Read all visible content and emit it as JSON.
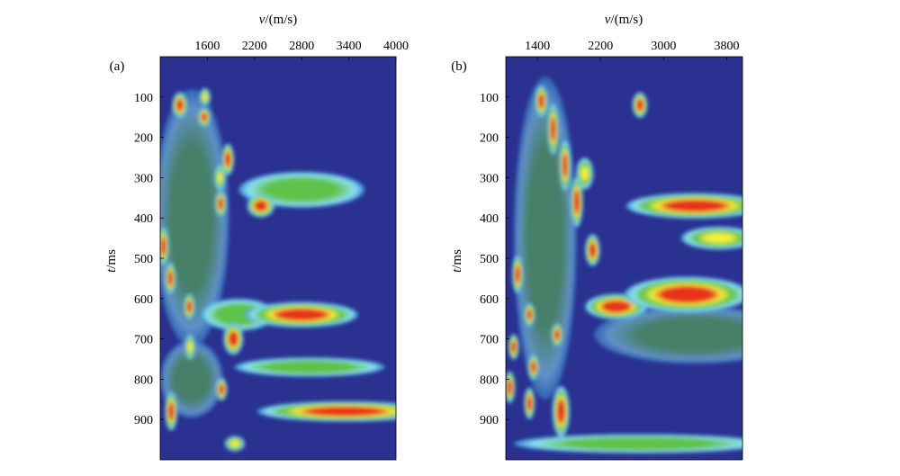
{
  "colors": {
    "low": "#2a3190",
    "mid_low": "#3aa0e0",
    "light": "#8ee0f2",
    "mid": "#5fc24a",
    "high": "#f4ee3a",
    "peak": "#e8321e"
  },
  "chart_data": [
    {
      "type": "heatmap",
      "panel_label": "(a)",
      "xlabel_var": "v",
      "xlabel_unit": "/(m/s)",
      "ylabel_var": "t",
      "ylabel_unit": "/ms",
      "xlim": [
        1000,
        4000
      ],
      "ylim": [
        0,
        1000
      ],
      "xticks": [
        1600,
        2200,
        2800,
        3400,
        4000
      ],
      "xtick_labels": [
        "1600",
        "2200",
        "2800",
        "3400",
        "4000"
      ],
      "yticks": [
        100,
        200,
        300,
        400,
        500,
        600,
        700,
        800,
        900
      ],
      "ytick_labels": [
        "100",
        "200",
        "300",
        "400",
        "500",
        "600",
        "700",
        "800",
        "900"
      ],
      "grid": false,
      "colorscale": "blue-cyan-green-yellow-red",
      "peaks": [
        {
          "v": 1250,
          "t": 120,
          "w": 60,
          "h": 20,
          "a": 1.0
        },
        {
          "v": 1560,
          "t": 150,
          "w": 50,
          "h": 15,
          "a": 0.95
        },
        {
          "v": 1570,
          "t": 100,
          "w": 45,
          "h": 14,
          "a": 0.8
        },
        {
          "v": 1860,
          "t": 255,
          "w": 50,
          "h": 25,
          "a": 1.0
        },
        {
          "v": 1760,
          "t": 300,
          "w": 40,
          "h": 20,
          "a": 0.8
        },
        {
          "v": 1770,
          "t": 365,
          "w": 45,
          "h": 20,
          "a": 1.0
        },
        {
          "v": 2280,
          "t": 370,
          "w": 110,
          "h": 18,
          "a": 1.0
        },
        {
          "v": 2800,
          "t": 330,
          "w": 500,
          "h": 28,
          "a": 0.55
        },
        {
          "v": 1040,
          "t": 470,
          "w": 45,
          "h": 30,
          "a": 0.95
        },
        {
          "v": 1130,
          "t": 550,
          "w": 40,
          "h": 25,
          "a": 0.9
        },
        {
          "v": 1370,
          "t": 620,
          "w": 45,
          "h": 20,
          "a": 0.85
        },
        {
          "v": 2800,
          "t": 640,
          "w": 450,
          "h": 20,
          "a": 1.0
        },
        {
          "v": 2000,
          "t": 640,
          "w": 300,
          "h": 25,
          "a": 0.5
        },
        {
          "v": 1930,
          "t": 700,
          "w": 80,
          "h": 25,
          "a": 1.0
        },
        {
          "v": 1380,
          "t": 720,
          "w": 40,
          "h": 20,
          "a": 0.8
        },
        {
          "v": 2900,
          "t": 770,
          "w": 600,
          "h": 15,
          "a": 0.55
        },
        {
          "v": 1780,
          "t": 825,
          "w": 45,
          "h": 18,
          "a": 0.9
        },
        {
          "v": 1140,
          "t": 880,
          "w": 50,
          "h": 30,
          "a": 1.0
        },
        {
          "v": 3350,
          "t": 880,
          "w": 700,
          "h": 16,
          "a": 1.0
        },
        {
          "v": 1950,
          "t": 960,
          "w": 80,
          "h": 12,
          "a": 0.7
        },
        {
          "v": 1400,
          "t": 800,
          "w": 250,
          "h": 60,
          "a": 0.45
        },
        {
          "v": 1400,
          "t": 400,
          "w": 300,
          "h": 200,
          "a": 0.35
        }
      ]
    },
    {
      "type": "heatmap",
      "panel_label": "(b)",
      "xlabel_var": "v",
      "xlabel_unit": "/(m/s)",
      "ylabel_var": "t",
      "ylabel_unit": "/ms",
      "xlim": [
        1000,
        4000
      ],
      "ylim": [
        0,
        1000
      ],
      "xticks": [
        1400,
        2200,
        3000,
        3800
      ],
      "xtick_labels": [
        "1400",
        "2200",
        "3000",
        "3800"
      ],
      "yticks": [
        100,
        200,
        300,
        400,
        500,
        600,
        700,
        800,
        900
      ],
      "ytick_labels": [
        "100",
        "200",
        "300",
        "400",
        "500",
        "600",
        "700",
        "800",
        "900"
      ],
      "grid": false,
      "colorscale": "blue-cyan-green-yellow-red",
      "peaks": [
        {
          "v": 1450,
          "t": 110,
          "w": 50,
          "h": 25,
          "a": 1.0
        },
        {
          "v": 1600,
          "t": 180,
          "w": 45,
          "h": 40,
          "a": 1.0
        },
        {
          "v": 1750,
          "t": 270,
          "w": 45,
          "h": 40,
          "a": 1.0
        },
        {
          "v": 1900,
          "t": 360,
          "w": 50,
          "h": 40,
          "a": 1.0
        },
        {
          "v": 2000,
          "t": 290,
          "w": 70,
          "h": 25,
          "a": 0.7
        },
        {
          "v": 2700,
          "t": 120,
          "w": 60,
          "h": 20,
          "a": 0.95
        },
        {
          "v": 3400,
          "t": 370,
          "w": 550,
          "h": 20,
          "a": 0.9
        },
        {
          "v": 2100,
          "t": 480,
          "w": 60,
          "h": 25,
          "a": 0.9
        },
        {
          "v": 3300,
          "t": 590,
          "w": 500,
          "h": 28,
          "a": 1.0
        },
        {
          "v": 2400,
          "t": 620,
          "w": 250,
          "h": 20,
          "a": 0.95
        },
        {
          "v": 1150,
          "t": 540,
          "w": 40,
          "h": 30,
          "a": 0.95
        },
        {
          "v": 1300,
          "t": 640,
          "w": 35,
          "h": 18,
          "a": 0.85
        },
        {
          "v": 1650,
          "t": 690,
          "w": 45,
          "h": 18,
          "a": 0.9
        },
        {
          "v": 1100,
          "t": 720,
          "w": 35,
          "h": 20,
          "a": 0.85
        },
        {
          "v": 1350,
          "t": 770,
          "w": 40,
          "h": 20,
          "a": 0.9
        },
        {
          "v": 1300,
          "t": 860,
          "w": 40,
          "h": 25,
          "a": 0.95
        },
        {
          "v": 1700,
          "t": 880,
          "w": 70,
          "h": 40,
          "a": 1.0
        },
        {
          "v": 1050,
          "t": 820,
          "w": 35,
          "h": 25,
          "a": 0.85
        },
        {
          "v": 3400,
          "t": 690,
          "w": 800,
          "h": 45,
          "a": 0.45
        },
        {
          "v": 2700,
          "t": 960,
          "w": 1000,
          "h": 15,
          "a": 0.5
        },
        {
          "v": 1500,
          "t": 450,
          "w": 250,
          "h": 250,
          "a": 0.4
        },
        {
          "v": 3700,
          "t": 450,
          "w": 300,
          "h": 18,
          "a": 0.8
        }
      ]
    }
  ]
}
